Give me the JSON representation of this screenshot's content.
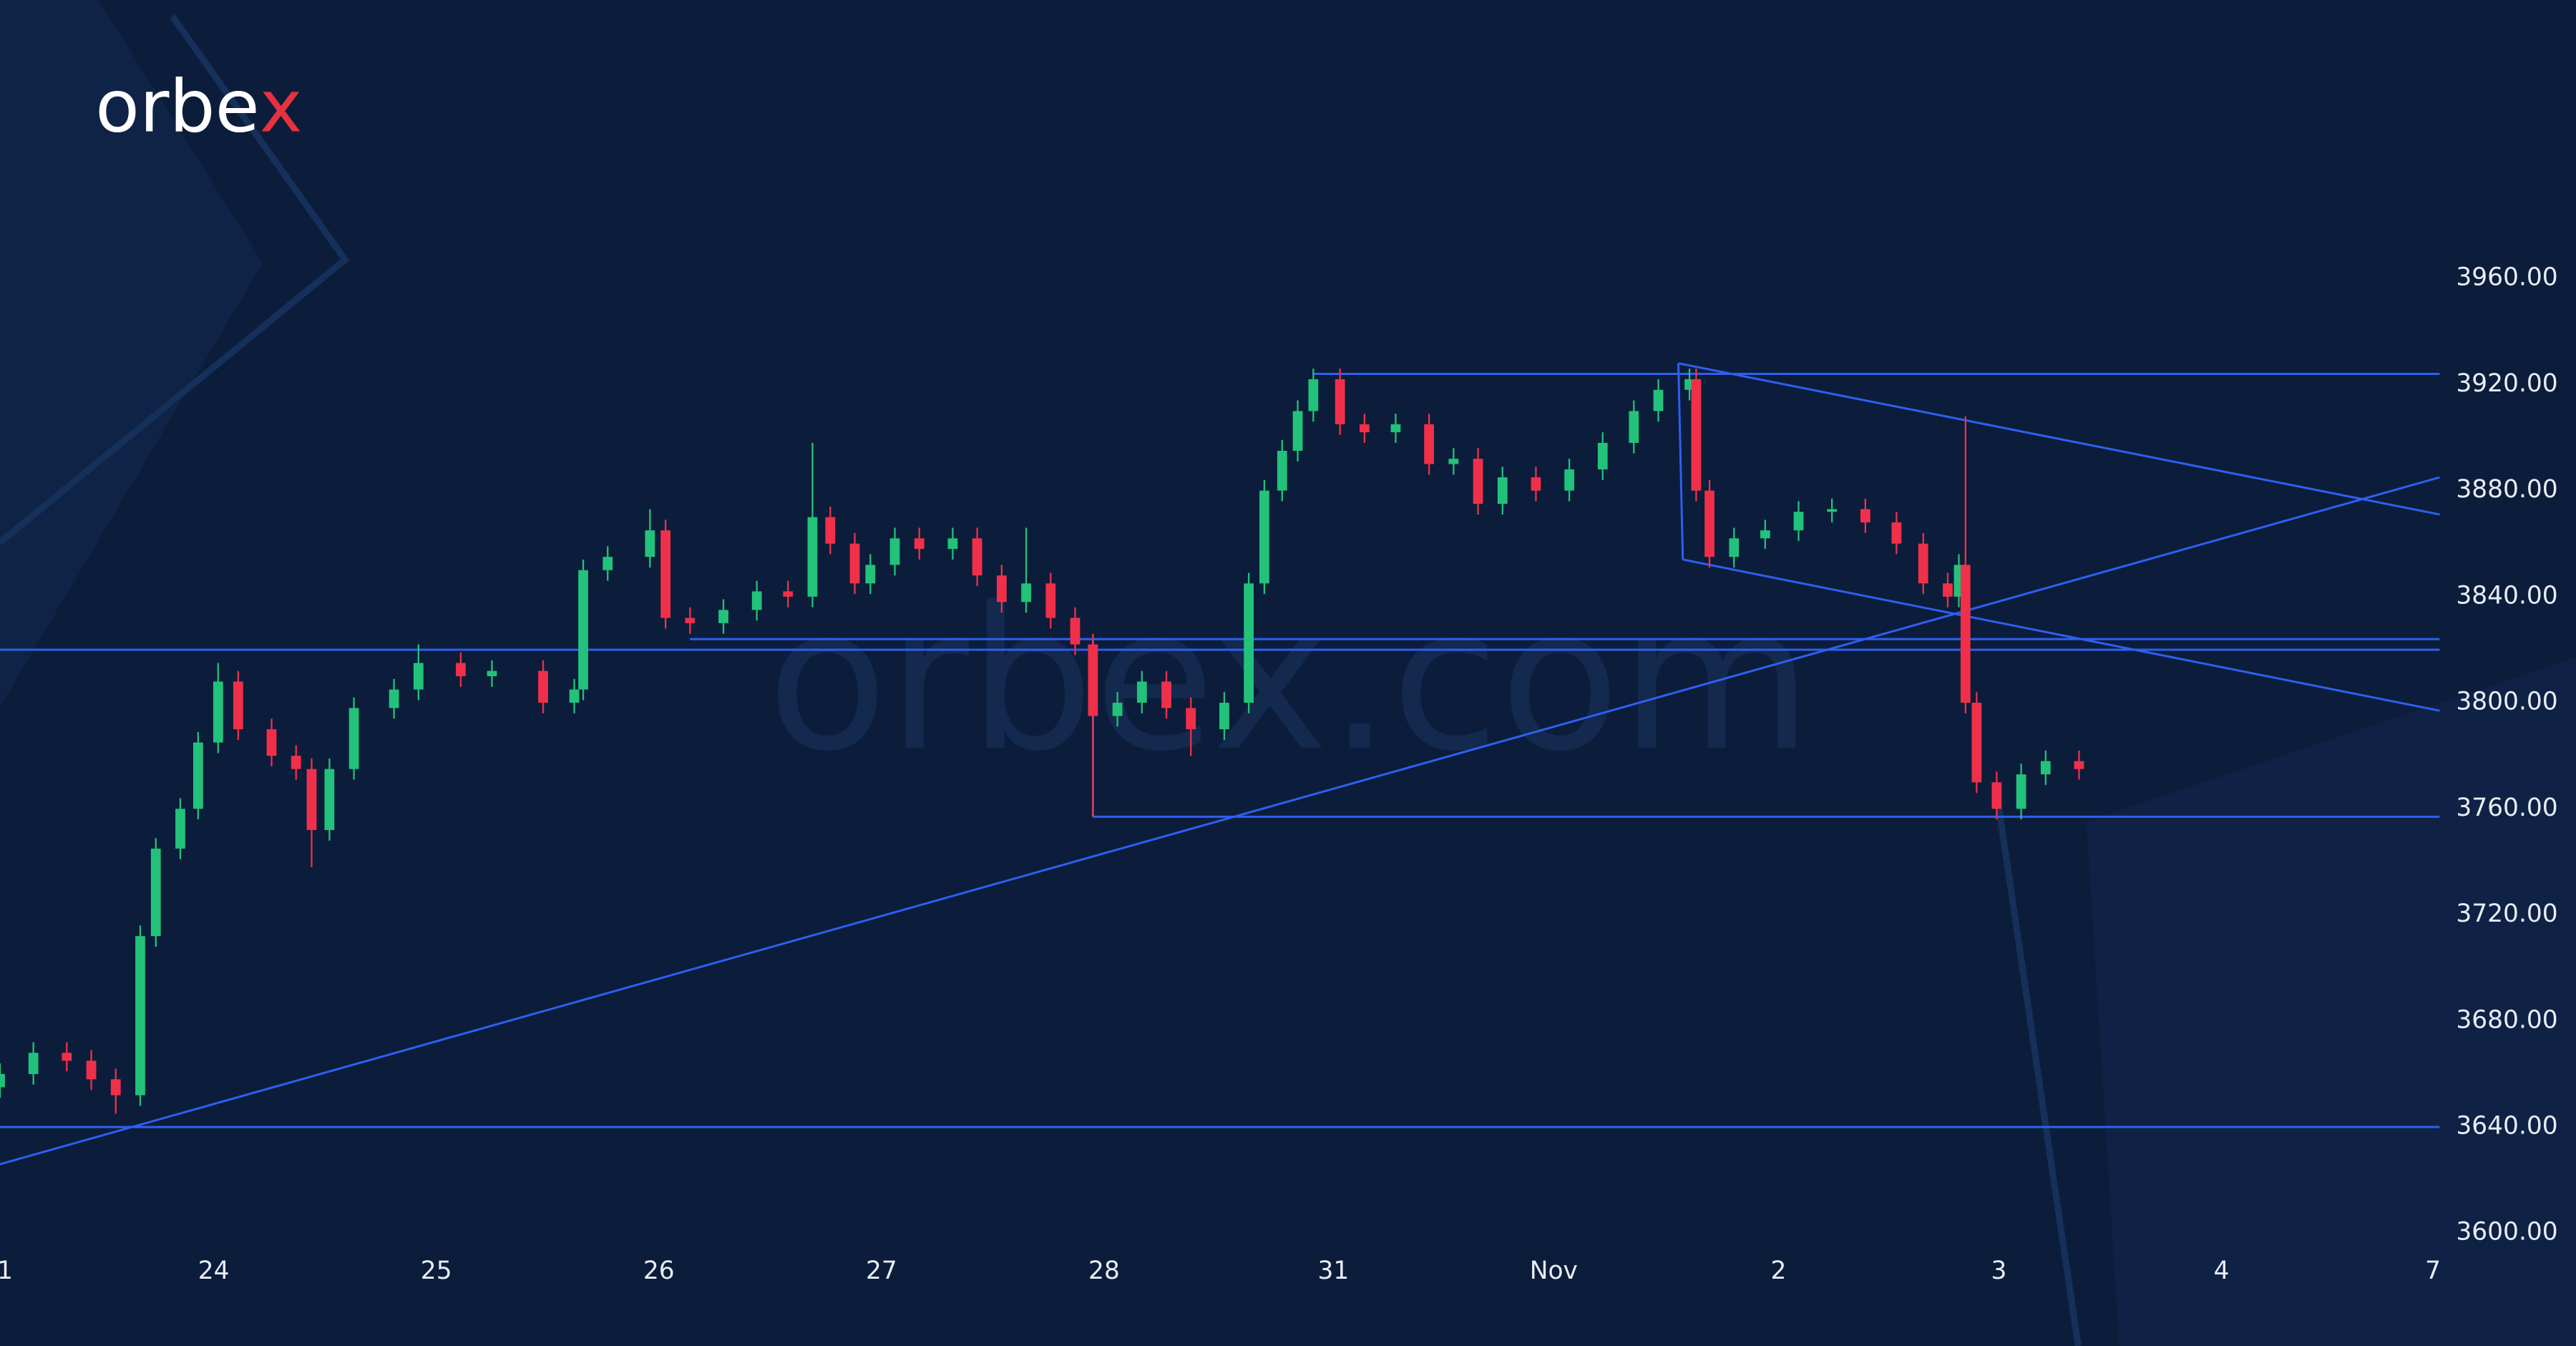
{
  "logo": {
    "text": "orbe",
    "accent": "x"
  },
  "watermark": "orbex.com",
  "chart_data": {
    "type": "candlestick",
    "x": [
      -0.96,
      -0.81,
      -0.66,
      -0.55,
      -0.44,
      -0.33,
      -0.26,
      -0.15,
      -0.07,
      0.02,
      0.11,
      0.26,
      0.37,
      0.44,
      0.52,
      0.63,
      0.81,
      0.92,
      1.11,
      1.25,
      1.48,
      1.62,
      1.66,
      1.77,
      1.96,
      2.03,
      2.14,
      2.29,
      2.44,
      2.58,
      2.69,
      2.77,
      2.88,
      2.95,
      3.06,
      3.17,
      3.32,
      3.43,
      3.54,
      3.65,
      3.76,
      3.87,
      3.95,
      4.06,
      4.17,
      4.28,
      4.39,
      4.54,
      4.65,
      4.72,
      4.8,
      4.87,
      4.94,
      5.06,
      5.17,
      5.31,
      5.46,
      5.57,
      5.68,
      5.79,
      5.94,
      6.09,
      6.24,
      6.38,
      6.49,
      6.63,
      6.66,
      6.72,
      6.83,
      6.97,
      7.12,
      7.27,
      7.42,
      7.56,
      7.68,
      7.79,
      7.84,
      7.87,
      7.92,
      8.01,
      8.12,
      8.23,
      8.38
    ],
    "open": [
      3655,
      3660,
      3668,
      3665,
      3658,
      3652,
      3712,
      3745,
      3760,
      3785,
      3808,
      3790,
      3780,
      3775,
      3752,
      3775,
      3798,
      3805,
      3815,
      3810,
      3812,
      3800,
      3805,
      3850,
      3855,
      3865,
      3832,
      3830,
      3835,
      3842,
      3840,
      3870,
      3860,
      3845,
      3852,
      3862,
      3858,
      3862,
      3848,
      3838,
      3845,
      3832,
      3822,
      3795,
      3800,
      3808,
      3798,
      3790,
      3800,
      3845,
      3880,
      3895,
      3910,
      3922,
      3905,
      3902,
      3905,
      3890,
      3892,
      3875,
      3885,
      3880,
      3888,
      3898,
      3910,
      3918,
      3922,
      3880,
      3855,
      3862,
      3865,
      3872,
      3873,
      3868,
      3860,
      3845,
      3840,
      3852,
      3800,
      3770,
      3760,
      3773,
      3778
    ],
    "high": [
      3664,
      3672,
      3672,
      3669,
      3662,
      3716,
      3749,
      3764,
      3789,
      3815,
      3812,
      3794,
      3784,
      3779,
      3779,
      3802,
      3809,
      3822,
      3819,
      3816,
      3816,
      3809,
      3854,
      3859,
      3873,
      3869,
      3836,
      3839,
      3846,
      3846,
      3898,
      3874,
      3864,
      3856,
      3866,
      3866,
      3866,
      3866,
      3852,
      3866,
      3849,
      3836,
      3826,
      3804,
      3812,
      3812,
      3802,
      3804,
      3849,
      3884,
      3899,
      3914,
      3926,
      3926,
      3909,
      3909,
      3909,
      3896,
      3896,
      3889,
      3889,
      3892,
      3902,
      3914,
      3922,
      3926,
      3926,
      3884,
      3866,
      3869,
      3876,
      3877,
      3877,
      3872,
      3864,
      3849,
      3856,
      3908,
      3804,
      3774,
      3777,
      3782,
      3782
    ],
    "low": [
      3651,
      3656,
      3661,
      3654,
      3645,
      3648,
      3708,
      3741,
      3756,
      3781,
      3786,
      3776,
      3771,
      3738,
      3748,
      3771,
      3794,
      3801,
      3806,
      3806,
      3796,
      3796,
      3801,
      3846,
      3851,
      3828,
      3826,
      3826,
      3831,
      3836,
      3836,
      3856,
      3841,
      3841,
      3848,
      3854,
      3854,
      3844,
      3834,
      3834,
      3828,
      3818,
      3757,
      3791,
      3796,
      3794,
      3780,
      3786,
      3796,
      3841,
      3876,
      3891,
      3906,
      3901,
      3898,
      3898,
      3886,
      3886,
      3871,
      3871,
      3876,
      3876,
      3884,
      3894,
      3906,
      3914,
      3876,
      3851,
      3851,
      3858,
      3861,
      3868,
      3864,
      3856,
      3841,
      3836,
      3836,
      3796,
      3766,
      3756,
      3756,
      3769,
      3771
    ],
    "close": [
      3660,
      3668,
      3665,
      3658,
      3652,
      3712,
      3745,
      3760,
      3785,
      3808,
      3790,
      3780,
      3775,
      3752,
      3775,
      3798,
      3805,
      3815,
      3810,
      3812,
      3800,
      3805,
      3850,
      3855,
      3865,
      3832,
      3830,
      3835,
      3842,
      3840,
      3870,
      3860,
      3845,
      3852,
      3862,
      3858,
      3862,
      3848,
      3838,
      3845,
      3832,
      3822,
      3795,
      3800,
      3808,
      3798,
      3790,
      3800,
      3845,
      3880,
      3895,
      3910,
      3922,
      3905,
      3902,
      3905,
      3890,
      3892,
      3875,
      3885,
      3880,
      3888,
      3898,
      3910,
      3918,
      3922,
      3880,
      3855,
      3862,
      3865,
      3872,
      3873,
      3868,
      3860,
      3845,
      3840,
      3852,
      3800,
      3770,
      3760,
      3773,
      3778,
      3775
    ],
    "up_color": "#22c27a",
    "down_color": "#f0304a",
    "line_color": "#2f5ff0",
    "xlim": [
      -0.96,
      10
    ],
    "xticks": [
      {
        "value": -0.96,
        "label": "1"
      },
      {
        "value": 0,
        "label": "24"
      },
      {
        "value": 1,
        "label": "25"
      },
      {
        "value": 2,
        "label": "26"
      },
      {
        "value": 3,
        "label": "27"
      },
      {
        "value": 4,
        "label": "28"
      },
      {
        "value": 5.03,
        "label": "31"
      },
      {
        "value": 6.02,
        "label": "Nov"
      },
      {
        "value": 7.03,
        "label": "2"
      },
      {
        "value": 8.02,
        "label": "3"
      },
      {
        "value": 9.02,
        "label": "4"
      },
      {
        "value": 9.97,
        "label": "7"
      }
    ],
    "ylim": [
      3594,
      4065
    ],
    "yticks": [
      {
        "value": 3600,
        "label": "3600.00"
      },
      {
        "value": 3640,
        "label": "3640.00"
      },
      {
        "value": 3680,
        "label": "3680.00"
      },
      {
        "value": 3720,
        "label": "3720.00"
      },
      {
        "value": 3760,
        "label": "3760.00"
      },
      {
        "value": 3800,
        "label": "3800.00"
      },
      {
        "value": 3840,
        "label": "3840.00"
      },
      {
        "value": 3880,
        "label": "3880.00"
      },
      {
        "value": 3920,
        "label": "3920.00"
      },
      {
        "value": 3960,
        "label": "3960.00"
      }
    ],
    "lines": [
      {
        "x": [
          -0.96,
          10
        ],
        "y": [
          3820,
          3820
        ]
      },
      {
        "x": [
          2.14,
          10
        ],
        "y": [
          3824,
          3824
        ]
      },
      {
        "x": [
          4.94,
          10
        ],
        "y": [
          3924,
          3924
        ]
      },
      {
        "x": [
          3.95,
          10
        ],
        "y": [
          3757,
          3757
        ]
      },
      {
        "x": [
          3.95,
          3.95
        ],
        "y": [
          3824,
          3757
        ]
      },
      {
        "x": [
          -0.96,
          10
        ],
        "y": [
          3640,
          3640
        ]
      },
      {
        "x": [
          -0.96,
          10
        ],
        "y": [
          3626,
          3885
        ]
      },
      {
        "x": [
          6.58,
          10
        ],
        "y": [
          3928,
          3871
        ]
      },
      {
        "x": [
          6.6,
          10
        ],
        "y": [
          3854,
          3797
        ]
      },
      {
        "x": [
          6.58,
          6.6
        ],
        "y": [
          3928,
          3854
        ]
      }
    ]
  }
}
